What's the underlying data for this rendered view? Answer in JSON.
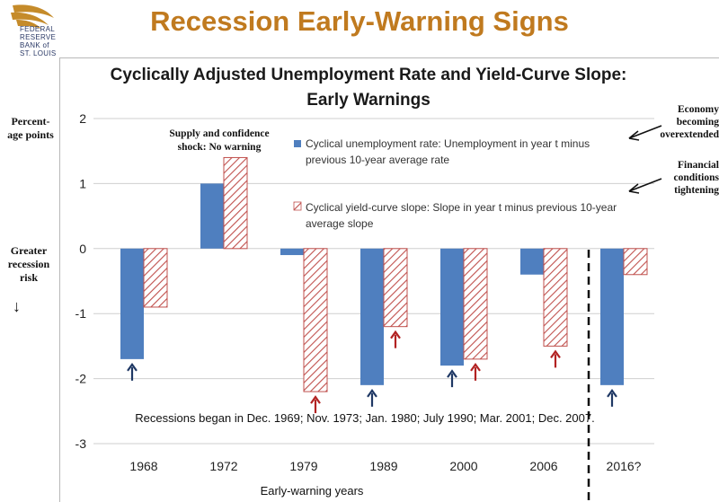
{
  "logo": {
    "lines": [
      "FEDERAL",
      "RESERVE",
      "BANK of",
      "ST. LOUIS"
    ]
  },
  "page_title": "Recession Early-Warning Signs",
  "y_axis_note": "Percent-age points",
  "risk_note": "Greater recession risk",
  "right_notes": [
    "Economy becoming overextended",
    "Financial conditions tightening"
  ],
  "supply_note": "Supply and confidence shock: No warning",
  "colors": {
    "title": "#c07a1f",
    "unemployment": "#4f7fbf",
    "yieldcurve": "#c0504d",
    "arrow_blue": "#1f3864",
    "arrow_red": "#b22222"
  },
  "chart_data": {
    "type": "bar",
    "title": "Cyclically Adjusted Unemployment Rate and Yield-Curve Slope: Early Warnings",
    "xlabel": "Early-warning years",
    "ylabel": "Percent-age points",
    "categories": [
      "1968",
      "1972",
      "1979",
      "1989",
      "2000",
      "2006",
      "2016?"
    ],
    "ylim": [
      -3,
      2
    ],
    "yticks": [
      "2",
      "1",
      "0",
      "-1",
      "-2",
      "-3"
    ],
    "series": [
      {
        "name": "Cyclical unemployment rate: Unemployment in year t minus previous 10-year average rate",
        "values": [
          -1.7,
          1.0,
          -0.1,
          -2.1,
          -1.8,
          -0.4,
          -2.1
        ]
      },
      {
        "name": "Cyclical yield-curve slope: Slope in year t minus previous 10-year average slope",
        "values": [
          -0.9,
          1.4,
          -2.2,
          -1.2,
          -1.7,
          -1.5,
          -0.4
        ]
      }
    ],
    "grid": true,
    "warning_arrows": [
      {
        "category": "1968",
        "series": 0
      },
      {
        "category": "1979",
        "series": 1
      },
      {
        "category": "1989",
        "series": 0
      },
      {
        "category": "1989",
        "series": 1
      },
      {
        "category": "2000",
        "series": 0
      },
      {
        "category": "2000",
        "series": 1
      },
      {
        "category": "2006",
        "series": 1
      },
      {
        "category": "2016?",
        "series": 0
      }
    ],
    "annotation": "Recessions began in Dec. 1969; Nov. 1973; Jan. 1980; July 1990; Mar. 2001; Dec. 2007."
  }
}
